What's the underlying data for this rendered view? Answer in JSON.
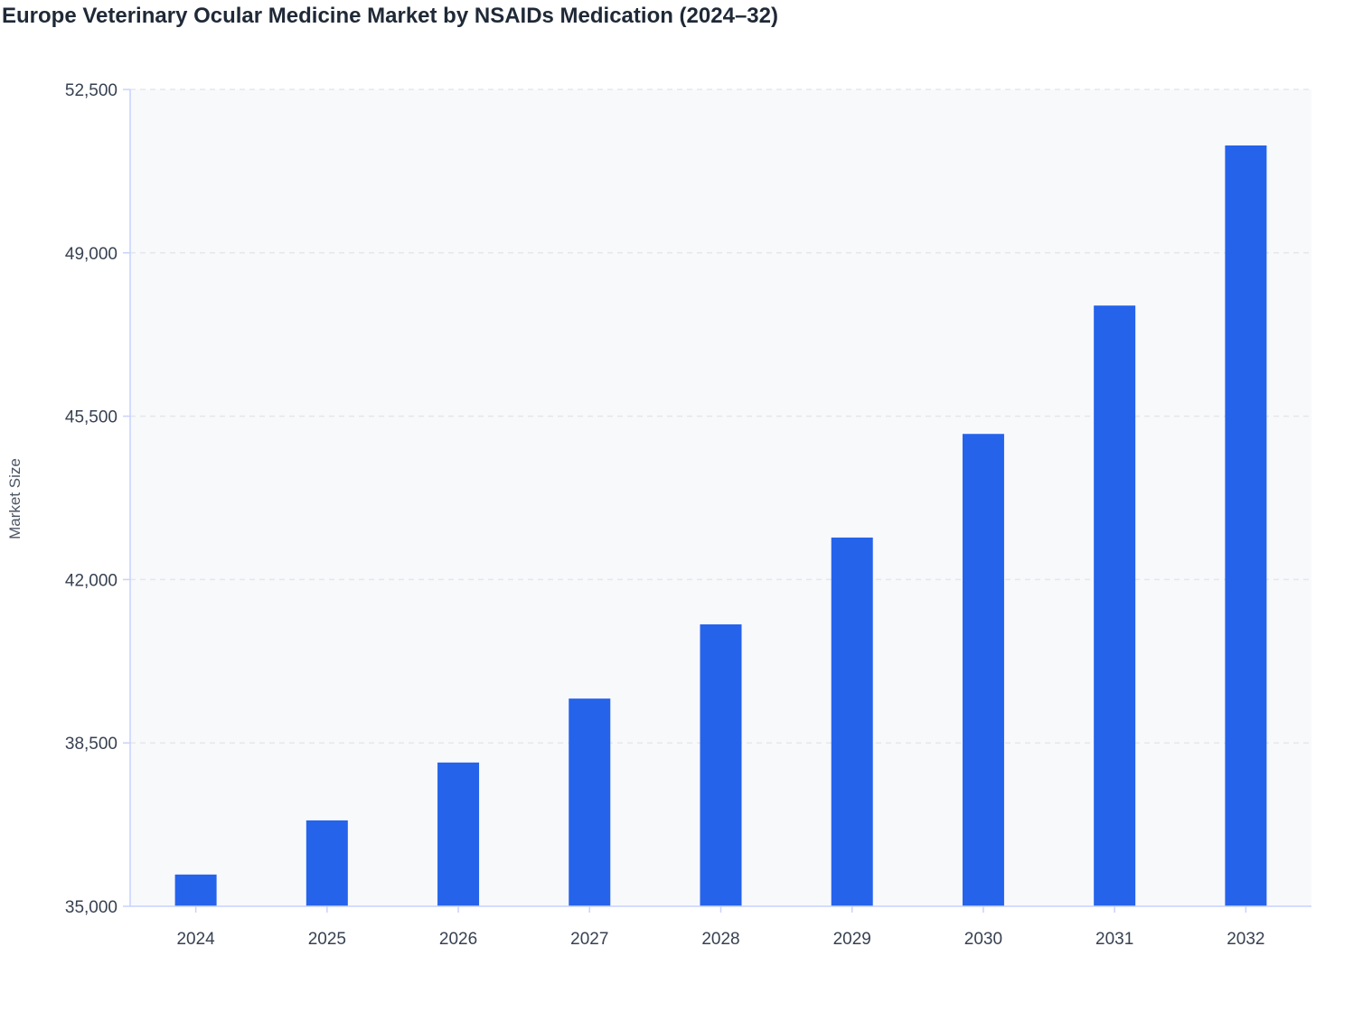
{
  "chart_data": {
    "type": "bar",
    "title": "Europe Veterinary Ocular Medicine Market by NSAIDs Medication (2024–32)",
    "xlabel": "",
    "ylabel": "Market Size",
    "categories": [
      "2024",
      "2025",
      "2026",
      "2027",
      "2028",
      "2029",
      "2030",
      "2031",
      "2032"
    ],
    "values": [
      35680,
      36840,
      38080,
      39450,
      41040,
      42900,
      45120,
      47870,
      51300
    ],
    "ylim": [
      35000,
      52500
    ],
    "yticks": [
      "35,000",
      "38,500",
      "42,000",
      "45,500",
      "49,000",
      "52,500"
    ],
    "ytick_values": [
      35000,
      38500,
      42000,
      45500,
      49000,
      52500
    ],
    "grid": true,
    "legend": "none",
    "colors": {
      "bar": "#2563eb",
      "plot_bg": "#f8f9fb",
      "axis": "#c7d2fe",
      "grid": "#e5e7eb"
    }
  }
}
